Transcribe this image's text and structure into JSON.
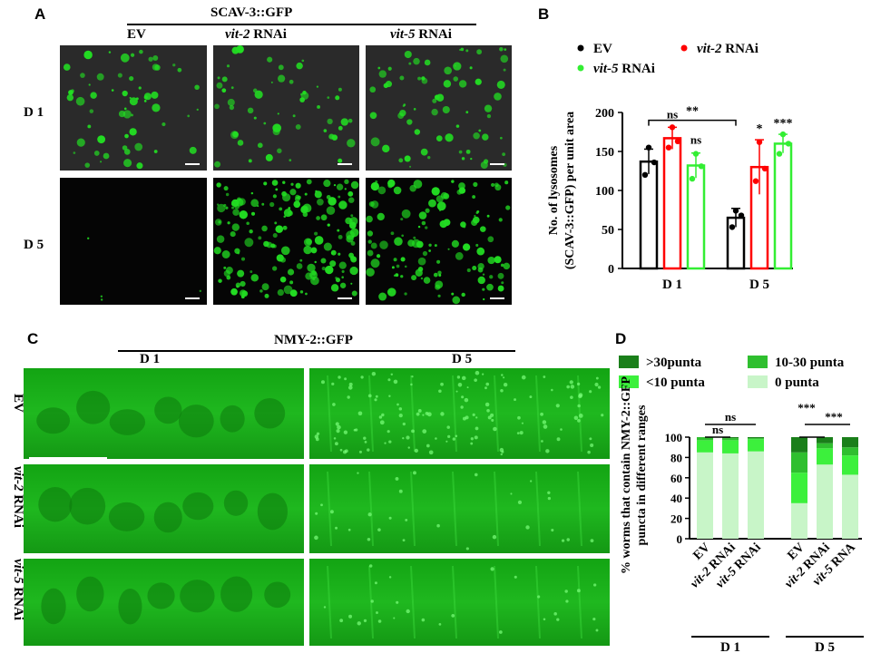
{
  "panels": {
    "A": {
      "letter": "A",
      "title": "SCAV-3::GFP",
      "columns": [
        {
          "label_pre": "EV",
          "label_italic": "",
          "label_post": ""
        },
        {
          "label_pre": "",
          "label_italic": "vit-2",
          "label_post": " RNAi"
        },
        {
          "label_pre": "",
          "label_italic": "vit-5",
          "label_post": " RNAi"
        }
      ],
      "rows": [
        "D 1",
        "D 5"
      ]
    },
    "C": {
      "letter": "C",
      "title": "NMY-2::GFP",
      "columns": [
        "D 1",
        "D 5"
      ],
      "rows": [
        {
          "italic": "",
          "post": "EV"
        },
        {
          "italic": "vit-2",
          "post": " RNAi"
        },
        {
          "italic": "vit-5",
          "post": " RNAi"
        }
      ]
    }
  },
  "colors": {
    "ev": "#000000",
    "vit2": "#ff0000",
    "vit5": "#33ee33",
    "gfp": "#22dd22",
    "d_dark": "#1a7f1a",
    "d_mid": "#2fbf2f",
    "d_bright": "#3cf03c",
    "d_light": "#c8f5c8"
  },
  "chart_data": [
    {
      "panel": "B",
      "letter": "B",
      "type": "bar",
      "ylabel_line1": "No. of  lysosomes",
      "ylabel_line2": "(SCAV-3::GFP) per unit area",
      "ylim": [
        0,
        200
      ],
      "yticks": [
        "0",
        "50",
        "100",
        "150",
        "200"
      ],
      "categories": [
        "D 1",
        "D 5"
      ],
      "legend": [
        {
          "pre": "EV",
          "italic": "",
          "post": ""
        },
        {
          "pre": "",
          "italic": "vit-2",
          "post": " RNAi"
        },
        {
          "pre": "",
          "italic": "vit-5",
          "post": " RNAi"
        }
      ],
      "series": [
        {
          "name": "EV",
          "values": [
            137,
            65
          ],
          "errors": [
            16,
            12
          ],
          "points": [
            [
              155,
              136,
              120
            ],
            [
              74,
              68,
              53
            ]
          ]
        },
        {
          "name": "vit-2 RNAi",
          "values": [
            167,
            130
          ],
          "errors": [
            14,
            35
          ],
          "points": [
            [
              181,
              163,
              155
            ],
            [
              162,
              128,
              112
            ]
          ]
        },
        {
          "name": "vit-5 RNAi",
          "values": [
            132,
            160
          ],
          "errors": [
            16,
            12
          ],
          "points": [
            [
              147,
              131,
              115
            ],
            [
              172,
              160,
              147
            ]
          ]
        }
      ],
      "annotations": {
        "d1": [
          "ns",
          "ns"
        ],
        "d5": [
          "*",
          "***"
        ],
        "bracket": "**"
      }
    },
    {
      "panel": "D",
      "letter": "D",
      "type": "bar",
      "stacked": true,
      "ylabel_line1": "% worms that contain NMY-2::GFP",
      "ylabel_line2": "puncta in different ranges",
      "ylim": [
        0,
        100
      ],
      "yticks": [
        "0",
        "20",
        "40",
        "60",
        "80",
        "100"
      ],
      "legend": [
        ">30punta",
        "10-30 punta",
        "<10 punta",
        "0 punta"
      ],
      "categories": [
        {
          "pre": "EV",
          "italic": "",
          "post": ""
        },
        {
          "pre": "",
          "italic": "vit-2",
          "post": " RNAi"
        },
        {
          "pre": "",
          "italic": "vit-5",
          "post": " RNAi"
        },
        {
          "pre": "EV",
          "italic": "",
          "post": ""
        },
        {
          "pre": "",
          "italic": "vit-2",
          "post": " RNAi"
        },
        {
          "pre": "",
          "italic": "vit-5",
          "post": " RNA"
        }
      ],
      "groups": [
        "D 1",
        "D 5"
      ],
      "series": [
        {
          "name": "0 punta",
          "values": [
            85,
            84,
            86,
            35,
            73,
            63
          ]
        },
        {
          "name": "<10 punta",
          "values": [
            12,
            13,
            12,
            30,
            16,
            19
          ]
        },
        {
          "name": "10-30 punta",
          "values": [
            3,
            2,
            1,
            20,
            5,
            8
          ]
        },
        {
          "name": ">30punta",
          "values": [
            0,
            1,
            1,
            15,
            6,
            10
          ]
        }
      ],
      "annotations": {
        "d1_a": "ns",
        "d1_b": "ns",
        "d5_a": "***",
        "d5_b": "***"
      }
    }
  ]
}
